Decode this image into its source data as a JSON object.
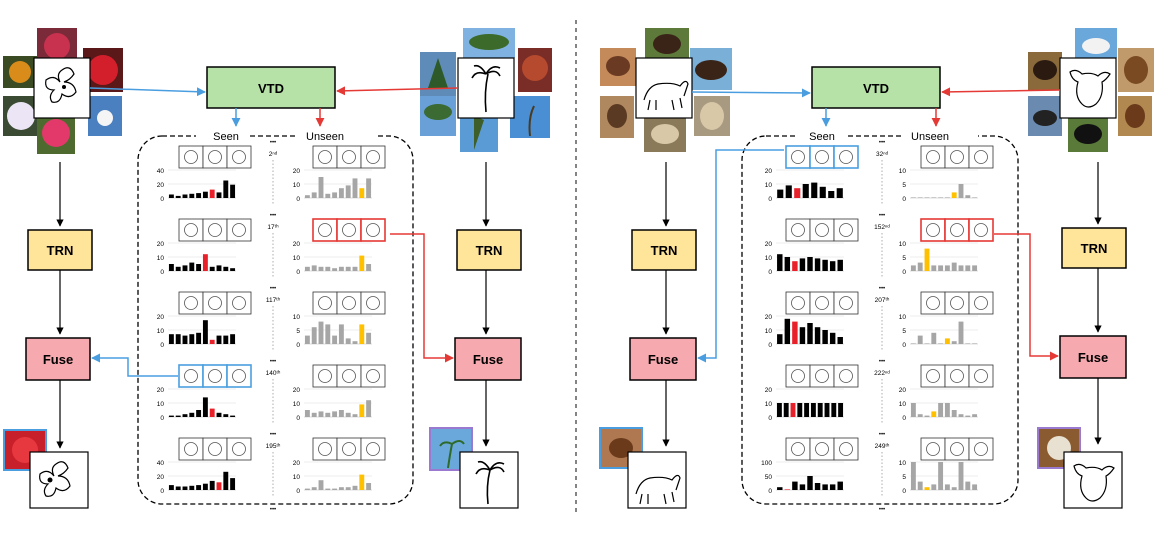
{
  "labels": {
    "vtd": "VTD",
    "trn": "TRN",
    "fuse": "Fuse",
    "seen": "Seen",
    "unseen": "Unseen",
    "ellipsis": "•••"
  },
  "colors": {
    "vtd": "#b6e2a8",
    "trn": "#ffe59a",
    "fuse": "#f7a9b0",
    "seen_bar": "#000000",
    "unseen_bar": "#a6a6a6",
    "seen_highlight": "#e8202a",
    "unseen_highlight": "#ffc000",
    "blue": "#4a9ee0",
    "red": "#e53935"
  },
  "left_panel": {
    "rows": [
      {
        "rank": "2ⁿᵈ",
        "seen_ymax": 40,
        "unseen_ymax": 20,
        "seen": [
          5,
          3,
          5,
          6,
          7,
          9,
          12,
          8,
          25,
          19
        ],
        "seen_hl": 6,
        "unseen": [
          2,
          4,
          15,
          3,
          4,
          7,
          9,
          14,
          7,
          14
        ],
        "unseen_hl": 8
      },
      {
        "rank": "17ᵗʰ",
        "seen_ymax": 20,
        "unseen_ymax": 20,
        "seen": [
          5,
          3,
          4,
          6,
          5,
          12,
          3,
          4,
          3,
          2
        ],
        "seen_hl": 5,
        "unseen": [
          3,
          4,
          3,
          3,
          2,
          3,
          3,
          3,
          11,
          5
        ],
        "unseen_hl": 8
      },
      {
        "rank": "117ᵗʰ",
        "seen_ymax": 20,
        "unseen_ymax": 10,
        "seen": [
          7,
          7,
          6,
          7,
          8,
          17,
          3,
          6,
          6,
          7
        ],
        "seen_hl": 6,
        "unseen": [
          3,
          6,
          8,
          7,
          3,
          7,
          2,
          1,
          7,
          4
        ],
        "unseen_hl": 8
      },
      {
        "rank": "140ᵗʰ",
        "seen_ymax": 20,
        "unseen_ymax": 20,
        "seen": [
          1,
          1,
          2,
          3,
          5,
          14,
          6,
          3,
          2,
          1
        ],
        "seen_hl": 6,
        "unseen": [
          5,
          3,
          4,
          3,
          4,
          5,
          3,
          2,
          9,
          12
        ],
        "unseen_hl": 8
      },
      {
        "rank": "195ᵗʰ",
        "seen_ymax": 40,
        "unseen_ymax": 20,
        "seen": [
          7,
          5,
          5,
          6,
          7,
          9,
          13,
          11,
          26,
          17
        ],
        "seen_hl": 7,
        "unseen": [
          1,
          2,
          7,
          1,
          1,
          2,
          2,
          3,
          11,
          5
        ],
        "unseen_hl": 8
      }
    ]
  },
  "right_panel": {
    "rows": [
      {
        "rank": "32ⁿᵈ",
        "seen_ymax": 20,
        "unseen_ymax": 10,
        "seen": [
          6,
          9,
          7,
          10,
          11,
          8,
          5,
          7
        ],
        "seen_hl": 2,
        "unseen": [
          0,
          0,
          0,
          0,
          0,
          0,
          2,
          5,
          1,
          0
        ],
        "unseen_hl": 6
      },
      {
        "rank": "152ⁿᵈ",
        "seen_ymax": 20,
        "unseen_ymax": 10,
        "seen": [
          12,
          10,
          7,
          9,
          10,
          9,
          8,
          7,
          8
        ],
        "seen_hl": 2,
        "unseen": [
          2,
          3,
          8,
          2,
          2,
          2,
          3,
          2,
          2,
          2
        ],
        "unseen_hl": 2
      },
      {
        "rank": "207ᵗʰ",
        "seen_ymax": 20,
        "unseen_ymax": 10,
        "seen": [
          7,
          18,
          16,
          12,
          15,
          12,
          10,
          8,
          5
        ],
        "seen_hl": 2,
        "unseen": [
          0,
          3,
          0,
          4,
          0,
          2,
          1,
          8,
          0,
          0
        ],
        "unseen_hl": 5
      },
      {
        "rank": "222ⁿᵈ",
        "seen_ymax": 20,
        "unseen_ymax": 20,
        "seen": [
          10,
          10,
          10,
          10,
          10,
          10,
          10,
          10,
          10,
          10
        ],
        "seen_hl": 2,
        "unseen": [
          10,
          2,
          1,
          4,
          10,
          10,
          5,
          2,
          1,
          2
        ],
        "unseen_hl": 3
      },
      {
        "rank": "249ᵗʰ",
        "seen_ymax": 100,
        "unseen_ymax": 10,
        "seen": [
          10,
          2,
          30,
          20,
          50,
          25,
          20,
          20,
          30
        ],
        "seen_hl": 1,
        "unseen": [
          10,
          3,
          1,
          2,
          10,
          2,
          1,
          10,
          3,
          2
        ],
        "unseen_hl": 2
      }
    ]
  }
}
